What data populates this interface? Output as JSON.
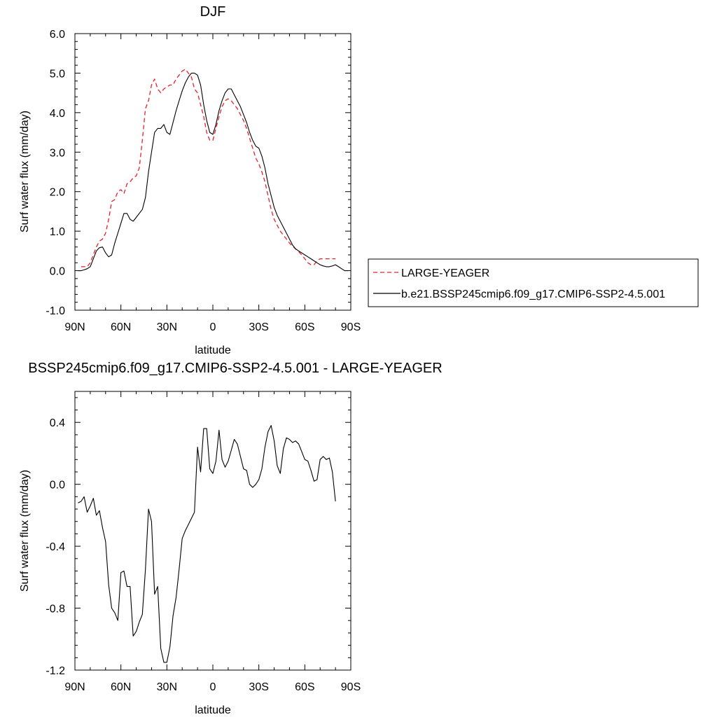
{
  "chart_data": [
    {
      "type": "line",
      "title": "DJF",
      "xlabel": "latitude",
      "ylabel": "Surf water flux (mm/day)",
      "xlim": [
        90,
        -90
      ],
      "ylim": [
        -1.0,
        6.0
      ],
      "xticks": [
        90,
        60,
        30,
        0,
        -30,
        -60,
        -90
      ],
      "xtick_labels": [
        "90N",
        "60N",
        "30N",
        "0",
        "30S",
        "60S",
        "90S"
      ],
      "yticks": [
        -1.0,
        0.0,
        1.0,
        2.0,
        3.0,
        4.0,
        5.0,
        6.0
      ],
      "ytick_labels": [
        "-1.0",
        "0.0",
        "1.0",
        "2.0",
        "3.0",
        "4.0",
        "5.0",
        "6.0"
      ],
      "grid": false,
      "legend_position": "right",
      "series": [
        {
          "name": "LARGE-YEAGER",
          "color": "#e8202a",
          "dash": true,
          "x": [
            86,
            84,
            82,
            80,
            78,
            76,
            74,
            72,
            70,
            68,
            66,
            64,
            62,
            60,
            58,
            56,
            54,
            52,
            50,
            48,
            46,
            44,
            42,
            40,
            38,
            36,
            34,
            32,
            30,
            28,
            26,
            24,
            22,
            20,
            18,
            16,
            14,
            12,
            10,
            8,
            6,
            4,
            2,
            0,
            -2,
            -4,
            -6,
            -8,
            -10,
            -12,
            -14,
            -16,
            -18,
            -20,
            -22,
            -24,
            -26,
            -28,
            -30,
            -32,
            -34,
            -36,
            -38,
            -40,
            -42,
            -44,
            -46,
            -48,
            -50,
            -52,
            -54,
            -56,
            -58,
            -60,
            -62,
            -64,
            -66,
            -68,
            -70,
            -72,
            -74,
            -76,
            -78,
            -80
          ],
          "y": [
            0.1,
            0.1,
            0.1,
            0.2,
            0.4,
            0.6,
            0.75,
            0.8,
            0.95,
            1.3,
            1.75,
            1.8,
            2.0,
            2.05,
            1.95,
            2.2,
            2.25,
            2.35,
            2.4,
            2.6,
            3.3,
            4.1,
            4.3,
            4.7,
            4.85,
            4.6,
            4.5,
            4.6,
            4.65,
            4.7,
            4.7,
            4.85,
            4.95,
            5.05,
            5.1,
            5.0,
            4.9,
            4.6,
            4.5,
            4.2,
            3.9,
            3.5,
            3.3,
            3.3,
            3.6,
            3.9,
            4.15,
            4.3,
            4.35,
            4.3,
            4.2,
            4.1,
            3.95,
            3.8,
            3.6,
            3.35,
            3.1,
            2.85,
            2.7,
            2.5,
            2.25,
            1.9,
            1.55,
            1.3,
            1.15,
            1.0,
            0.9,
            0.8,
            0.7,
            0.62,
            0.55,
            0.48,
            0.4,
            0.3,
            0.2,
            0.15,
            0.15,
            0.25,
            0.3,
            0.3,
            0.3,
            0.3,
            0.3,
            0.3
          ]
        },
        {
          "name": "b.e21.BSSP245cmip6.f09_g17.CMIP6-SSP2-4.5.001",
          "color": "#000000",
          "dash": false,
          "x": [
            88,
            86,
            84,
            82,
            80,
            78,
            76,
            74,
            72,
            70,
            68,
            66,
            64,
            62,
            60,
            58,
            56,
            54,
            52,
            50,
            48,
            46,
            44,
            42,
            40,
            38,
            36,
            34,
            32,
            30,
            28,
            26,
            24,
            22,
            20,
            18,
            16,
            14,
            12,
            10,
            8,
            6,
            4,
            2,
            0,
            -2,
            -4,
            -6,
            -8,
            -10,
            -12,
            -14,
            -16,
            -18,
            -20,
            -22,
            -24,
            -26,
            -28,
            -30,
            -32,
            -34,
            -36,
            -38,
            -40,
            -42,
            -44,
            -46,
            -48,
            -50,
            -52,
            -54,
            -56,
            -58,
            -60,
            -62,
            -64,
            -66,
            -68,
            -70,
            -72,
            -74,
            -76,
            -78,
            -80,
            -82,
            -84,
            -86,
            -88
          ],
          "y": [
            0.0,
            0.0,
            0.02,
            0.05,
            0.1,
            0.3,
            0.5,
            0.58,
            0.6,
            0.45,
            0.35,
            0.4,
            0.7,
            0.95,
            1.2,
            1.45,
            1.45,
            1.3,
            1.25,
            1.35,
            1.45,
            1.55,
            1.85,
            2.5,
            3.0,
            3.5,
            3.6,
            3.6,
            3.7,
            3.5,
            3.45,
            3.75,
            4.05,
            4.3,
            4.55,
            4.75,
            4.9,
            5.0,
            5.0,
            4.95,
            4.7,
            4.2,
            3.8,
            3.5,
            3.45,
            3.7,
            4.05,
            4.3,
            4.5,
            4.6,
            4.6,
            4.45,
            4.3,
            4.15,
            3.95,
            3.75,
            3.5,
            3.3,
            3.15,
            3.1,
            2.9,
            2.6,
            2.2,
            1.9,
            1.6,
            1.4,
            1.25,
            1.1,
            0.95,
            0.8,
            0.65,
            0.55,
            0.5,
            0.45,
            0.4,
            0.35,
            0.3,
            0.25,
            0.2,
            0.15,
            0.12,
            0.1,
            0.1,
            0.12,
            0.15,
            0.1,
            0.05,
            0.0,
            0.0
          ]
        }
      ]
    },
    {
      "type": "line",
      "title": "BSSP245cmip6.f09_g17.CMIP6-SSP2-4.5.001 - LARGE-YEAGER",
      "xlabel": "latitude",
      "ylabel": "Surf water flux (mm/day)",
      "xlim": [
        90,
        -90
      ],
      "ylim": [
        -1.2,
        0.6
      ],
      "xticks": [
        90,
        60,
        30,
        0,
        -30,
        -60,
        -90
      ],
      "xtick_labels": [
        "90N",
        "60N",
        "30N",
        "0",
        "30S",
        "60S",
        "90S"
      ],
      "yticks": [
        -1.2,
        -0.8,
        -0.4,
        0.0,
        0.4
      ],
      "ytick_labels": [
        "-1.2",
        "-0.8",
        "-0.4",
        "0.0",
        "0.4"
      ],
      "grid": false,
      "series": [
        {
          "color": "#000000",
          "dash": false,
          "x": [
            88,
            86,
            84,
            82,
            80,
            78,
            76,
            74,
            72,
            70,
            68,
            66,
            64,
            62,
            60,
            58,
            56,
            54,
            52,
            50,
            48,
            46,
            44,
            42,
            40,
            38,
            36,
            34,
            32,
            30,
            28,
            26,
            24,
            22,
            20,
            18,
            16,
            14,
            12,
            10,
            8,
            6,
            4,
            2,
            0,
            -2,
            -4,
            -6,
            -8,
            -10,
            -12,
            -14,
            -16,
            -18,
            -20,
            -22,
            -24,
            -26,
            -28,
            -30,
            -32,
            -34,
            -36,
            -38,
            -40,
            -42,
            -44,
            -46,
            -48,
            -50,
            -52,
            -54,
            -56,
            -58,
            -60,
            -62,
            -64,
            -66,
            -68,
            -70,
            -72,
            -74,
            -76,
            -78,
            -80
          ],
          "y": [
            -0.12,
            -0.11,
            -0.08,
            -0.18,
            -0.14,
            -0.09,
            -0.2,
            -0.17,
            -0.28,
            -0.37,
            -0.65,
            -0.8,
            -0.83,
            -0.88,
            -0.57,
            -0.56,
            -0.66,
            -0.66,
            -0.98,
            -0.95,
            -0.89,
            -0.84,
            -0.55,
            -0.16,
            -0.24,
            -0.71,
            -0.66,
            -1.06,
            -1.15,
            -1.15,
            -1.05,
            -0.85,
            -0.73,
            -0.55,
            -0.35,
            -0.3,
            -0.26,
            -0.22,
            -0.18,
            0.24,
            0.08,
            0.36,
            0.36,
            0.1,
            0.07,
            0.15,
            0.35,
            0.16,
            0.11,
            0.15,
            0.22,
            0.29,
            0.26,
            0.18,
            0.1,
            0.09,
            0.0,
            -0.02,
            0.0,
            0.03,
            0.1,
            0.24,
            0.34,
            0.38,
            0.28,
            0.12,
            0.07,
            0.23,
            0.3,
            0.29,
            0.27,
            0.28,
            0.26,
            0.21,
            0.16,
            0.15,
            0.09,
            0.02,
            0.03,
            0.16,
            0.18,
            0.16,
            0.17,
            0.08,
            -0.11
          ]
        }
      ]
    }
  ]
}
